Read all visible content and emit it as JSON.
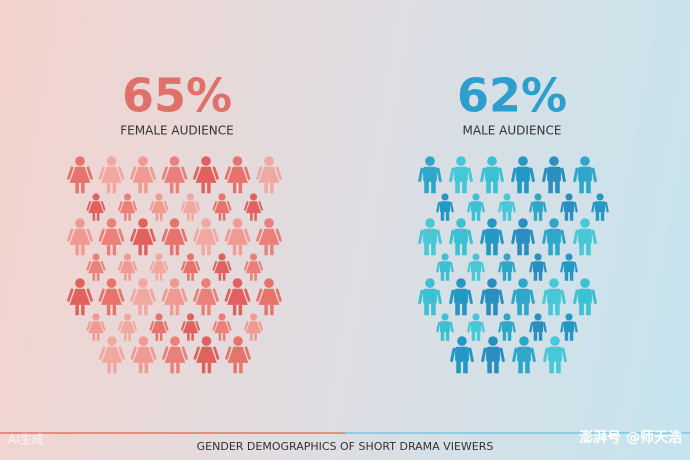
{
  "female": {
    "percent": "65%",
    "label": "FEMALE AUDIENCE"
  },
  "male": {
    "percent": "62%",
    "label": "MALE AUDIENCE"
  },
  "caption": "GENDER DEMOGRAPHICS OF SHORT DRAMA VIEWERS",
  "watermark_left": "AI生成",
  "watermark_right": "澎湃号 @师天浩"
}
